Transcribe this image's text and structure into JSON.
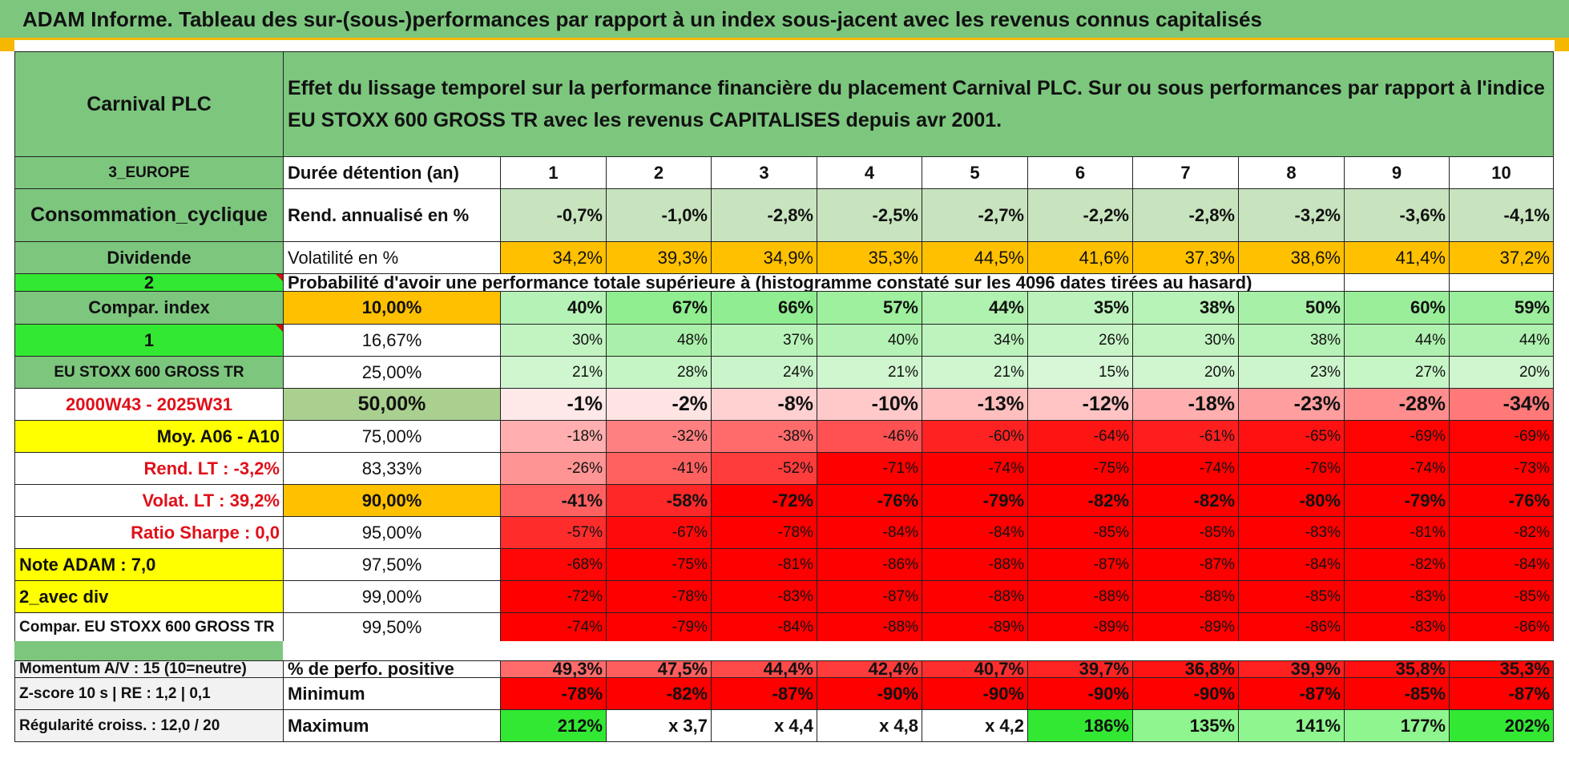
{
  "title": "ADAM Informe. Tableau des sur-(sous-)performances par rapport à un index sous-jacent avec les revenus connus capitalisés",
  "header": {
    "company": "Carnival PLC",
    "description": "Effet du lissage temporel sur la performance financière du placement Carnival PLC. Sur ou sous performances par rapport à l'indice EU STOXX 600 GROSS TR avec les revenus CAPITALISES depuis avr 2001."
  },
  "left_panel": {
    "region": "3_EUROPE",
    "sector": "Consommation_cyclique",
    "dividend_label": "Dividende",
    "selector_1": "2",
    "compar_index_label": "Compar. index",
    "selector_2": "1",
    "index_name": "EU STOXX 600 GROSS TR",
    "period": "2000W43 - 2025W31",
    "moy": "Moy. A06 - A10",
    "rend_lt": "Rend. LT :    -3,2%",
    "volat_lt": "Volat. LT :    39,2%",
    "sharpe": "Ratio Sharpe :     0,0",
    "note": "Note ADAM : 7,0",
    "avec_div": "2_avec div",
    "compar_full": "Compar. EU STOXX 600 GROSS TR"
  },
  "row_labels": {
    "duration": "Durée détention (an)",
    "rend": "Rend. annualisé en %",
    "vol": "Volatilité en %",
    "prob": "Probabilité d'avoir une performance totale supérieure à (histogramme constaté sur les 4096 dates tirées au hasard)"
  },
  "years": [
    "1",
    "2",
    "3",
    "4",
    "5",
    "6",
    "7",
    "8",
    "9",
    "10"
  ],
  "rend": [
    "-0,7%",
    "-1,0%",
    "-2,8%",
    "-2,5%",
    "-2,7%",
    "-2,2%",
    "-2,8%",
    "-3,2%",
    "-3,6%",
    "-4,1%"
  ],
  "vol": [
    "34,2%",
    "39,3%",
    "34,9%",
    "35,3%",
    "44,5%",
    "41,6%",
    "37,3%",
    "38,6%",
    "41,4%",
    "37,2%"
  ],
  "pct_rows": [
    {
      "level": "10,00%",
      "values": [
        "40%",
        "67%",
        "66%",
        "57%",
        "44%",
        "35%",
        "38%",
        "50%",
        "60%",
        "59%"
      ]
    },
    {
      "level": "16,67%",
      "values": [
        "30%",
        "48%",
        "37%",
        "40%",
        "34%",
        "26%",
        "30%",
        "38%",
        "44%",
        "44%"
      ]
    },
    {
      "level": "25,00%",
      "values": [
        "21%",
        "28%",
        "24%",
        "21%",
        "21%",
        "15%",
        "20%",
        "23%",
        "27%",
        "20%"
      ]
    },
    {
      "level": "50,00%",
      "values": [
        "-1%",
        "-2%",
        "-8%",
        "-10%",
        "-13%",
        "-12%",
        "-18%",
        "-23%",
        "-28%",
        "-34%"
      ]
    },
    {
      "level": "75,00%",
      "values": [
        "-18%",
        "-32%",
        "-38%",
        "-46%",
        "-60%",
        "-64%",
        "-61%",
        "-65%",
        "-69%",
        "-69%"
      ]
    },
    {
      "level": "83,33%",
      "values": [
        "-26%",
        "-41%",
        "-52%",
        "-71%",
        "-74%",
        "-75%",
        "-74%",
        "-76%",
        "-74%",
        "-73%"
      ]
    },
    {
      "level": "90,00%",
      "values": [
        "-41%",
        "-58%",
        "-72%",
        "-76%",
        "-79%",
        "-82%",
        "-82%",
        "-80%",
        "-79%",
        "-76%"
      ]
    },
    {
      "level": "95,00%",
      "values": [
        "-57%",
        "-67%",
        "-78%",
        "-84%",
        "-84%",
        "-85%",
        "-85%",
        "-83%",
        "-81%",
        "-82%"
      ]
    },
    {
      "level": "97,50%",
      "values": [
        "-68%",
        "-75%",
        "-81%",
        "-86%",
        "-88%",
        "-87%",
        "-87%",
        "-84%",
        "-82%",
        "-84%"
      ]
    },
    {
      "level": "99,00%",
      "values": [
        "-72%",
        "-78%",
        "-83%",
        "-87%",
        "-88%",
        "-88%",
        "-88%",
        "-85%",
        "-83%",
        "-85%"
      ]
    },
    {
      "level": "99,50%",
      "values": [
        "-74%",
        "-79%",
        "-84%",
        "-88%",
        "-89%",
        "-89%",
        "-89%",
        "-86%",
        "-83%",
        "-86%"
      ]
    }
  ],
  "bottom": {
    "momentum": "Momentum A/V : 15 (10=neutre)",
    "zscore": "Z-score 10 s | RE : 1,2 | 0,1",
    "regularite": "Régularité croiss. : 12,0 / 20",
    "pos_label": "% de perfo. positive",
    "min_label": "Minimum",
    "max_label": "Maximum",
    "pos": [
      "49,3%",
      "47,5%",
      "44,4%",
      "42,4%",
      "40,7%",
      "39,7%",
      "36,8%",
      "39,9%",
      "35,8%",
      "35,3%"
    ],
    "min": [
      "-78%",
      "-82%",
      "-87%",
      "-90%",
      "-90%",
      "-90%",
      "-90%",
      "-87%",
      "-85%",
      "-87%"
    ],
    "max": [
      "212%",
      "x 3,7",
      "x 4,4",
      "x 4,8",
      "x 4,2",
      "186%",
      "135%",
      "141%",
      "177%",
      "202%"
    ]
  },
  "colors": {
    "header_green": "#7dc67e",
    "bright_green": "#33e833",
    "yellow": "#ffff00",
    "orange": "#ffc000",
    "red": "#ff0000"
  }
}
